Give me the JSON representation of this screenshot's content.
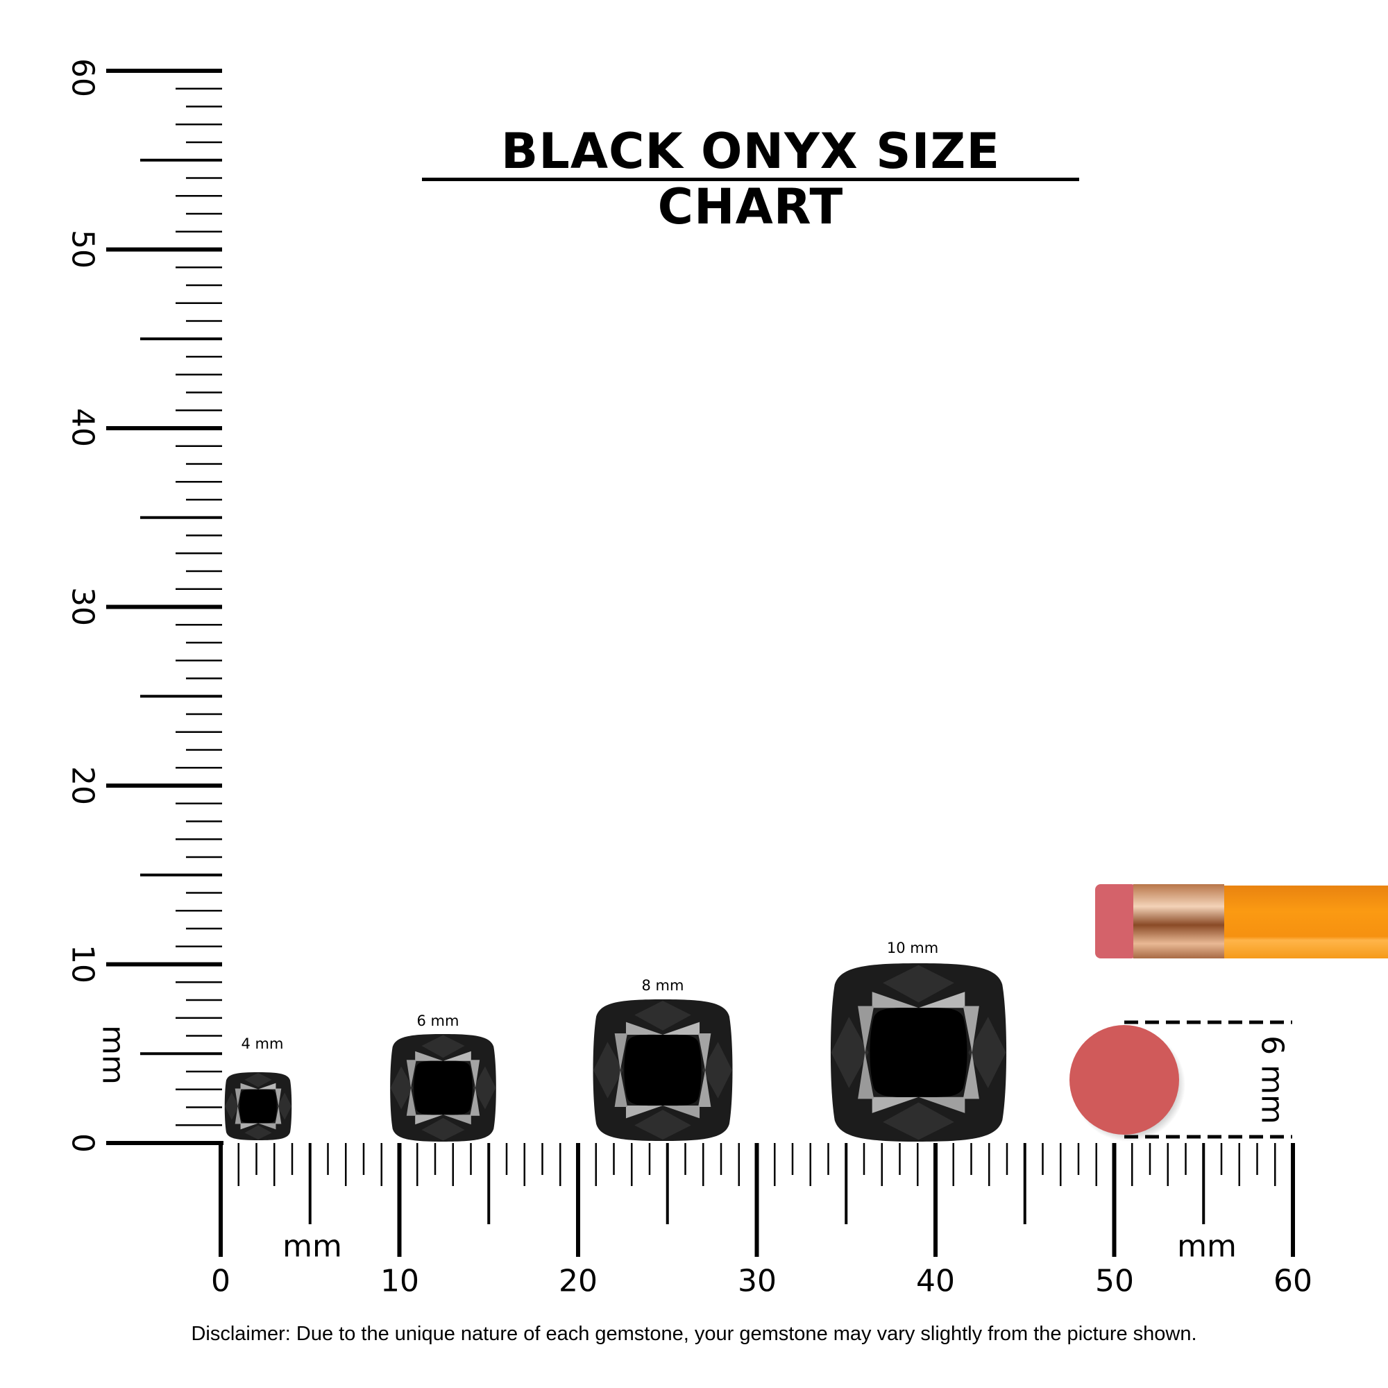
{
  "title": "BLACK ONYX SIZE CHART",
  "unit_label": "mm",
  "horizontal_ruler": {
    "labels": [
      "0",
      "10",
      "20",
      "30",
      "40",
      "50",
      "60"
    ],
    "unit": "mm"
  },
  "vertical_ruler": {
    "labels": [
      "0",
      "10",
      "20",
      "30",
      "40",
      "50",
      "60"
    ],
    "unit": "mm"
  },
  "gems": [
    {
      "label": "4 mm",
      "size_mm": 4
    },
    {
      "label": "6 mm",
      "size_mm": 6
    },
    {
      "label": "8 mm",
      "size_mm": 8
    },
    {
      "label": "10 mm",
      "size_mm": 10
    }
  ],
  "reference": {
    "label": "6 mm",
    "object": "pencil eraser",
    "eraser_color": "#d05a5a",
    "pencil_color": "#f7920f"
  },
  "disclaimer": "Disclaimer: Due to the unique nature of each gemstone, your gemstone may vary slightly from the picture shown.",
  "colors": {
    "gem_dark": "#1c1c1c",
    "gem_facet": "#2e2e2e",
    "gem_light": "#a8a8a8",
    "gem_table": "#000000"
  }
}
